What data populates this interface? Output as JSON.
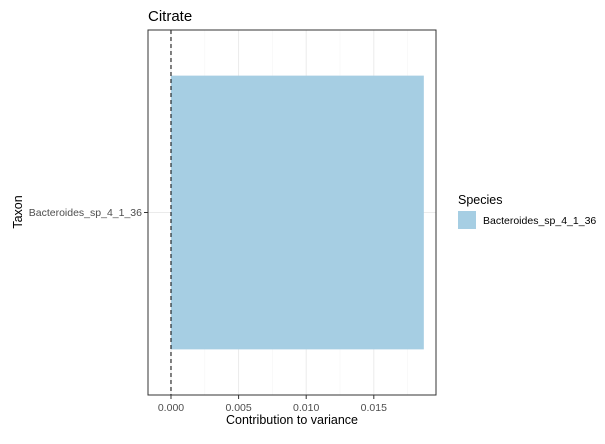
{
  "chart_data": {
    "type": "bar",
    "orientation": "horizontal",
    "title": "Citrate",
    "xlabel": "Contribution to variance",
    "ylabel": "Taxon",
    "categories": [
      "Bacteroides_sp_4_1_36"
    ],
    "series": [
      {
        "name": "Bacteroides_sp_4_1_36",
        "values": [
          0.0187
        ],
        "color": "#a6cee3"
      }
    ],
    "xlim": [
      -0.0017,
      0.0196
    ],
    "x_ticks": [
      0,
      0.005,
      0.01,
      0.015
    ],
    "x_tick_labels": [
      "0.000",
      "0.005",
      "0.010",
      "0.015"
    ],
    "reference_line": {
      "value": 0,
      "style": "dashed"
    },
    "grid": true,
    "legend": {
      "title": "Species",
      "placement": "right",
      "entries": [
        {
          "label": "Bacteroides_sp_4_1_36",
          "color": "#a6cee3"
        }
      ]
    },
    "panel_border": true
  },
  "colors": {
    "bar": "#a6cee3",
    "grid_major": "#ebebeb",
    "grid_minor": "#f5f5f5",
    "panel_border": "#333333",
    "axis_text": "#4d4d4d",
    "title_text": "#000000"
  }
}
